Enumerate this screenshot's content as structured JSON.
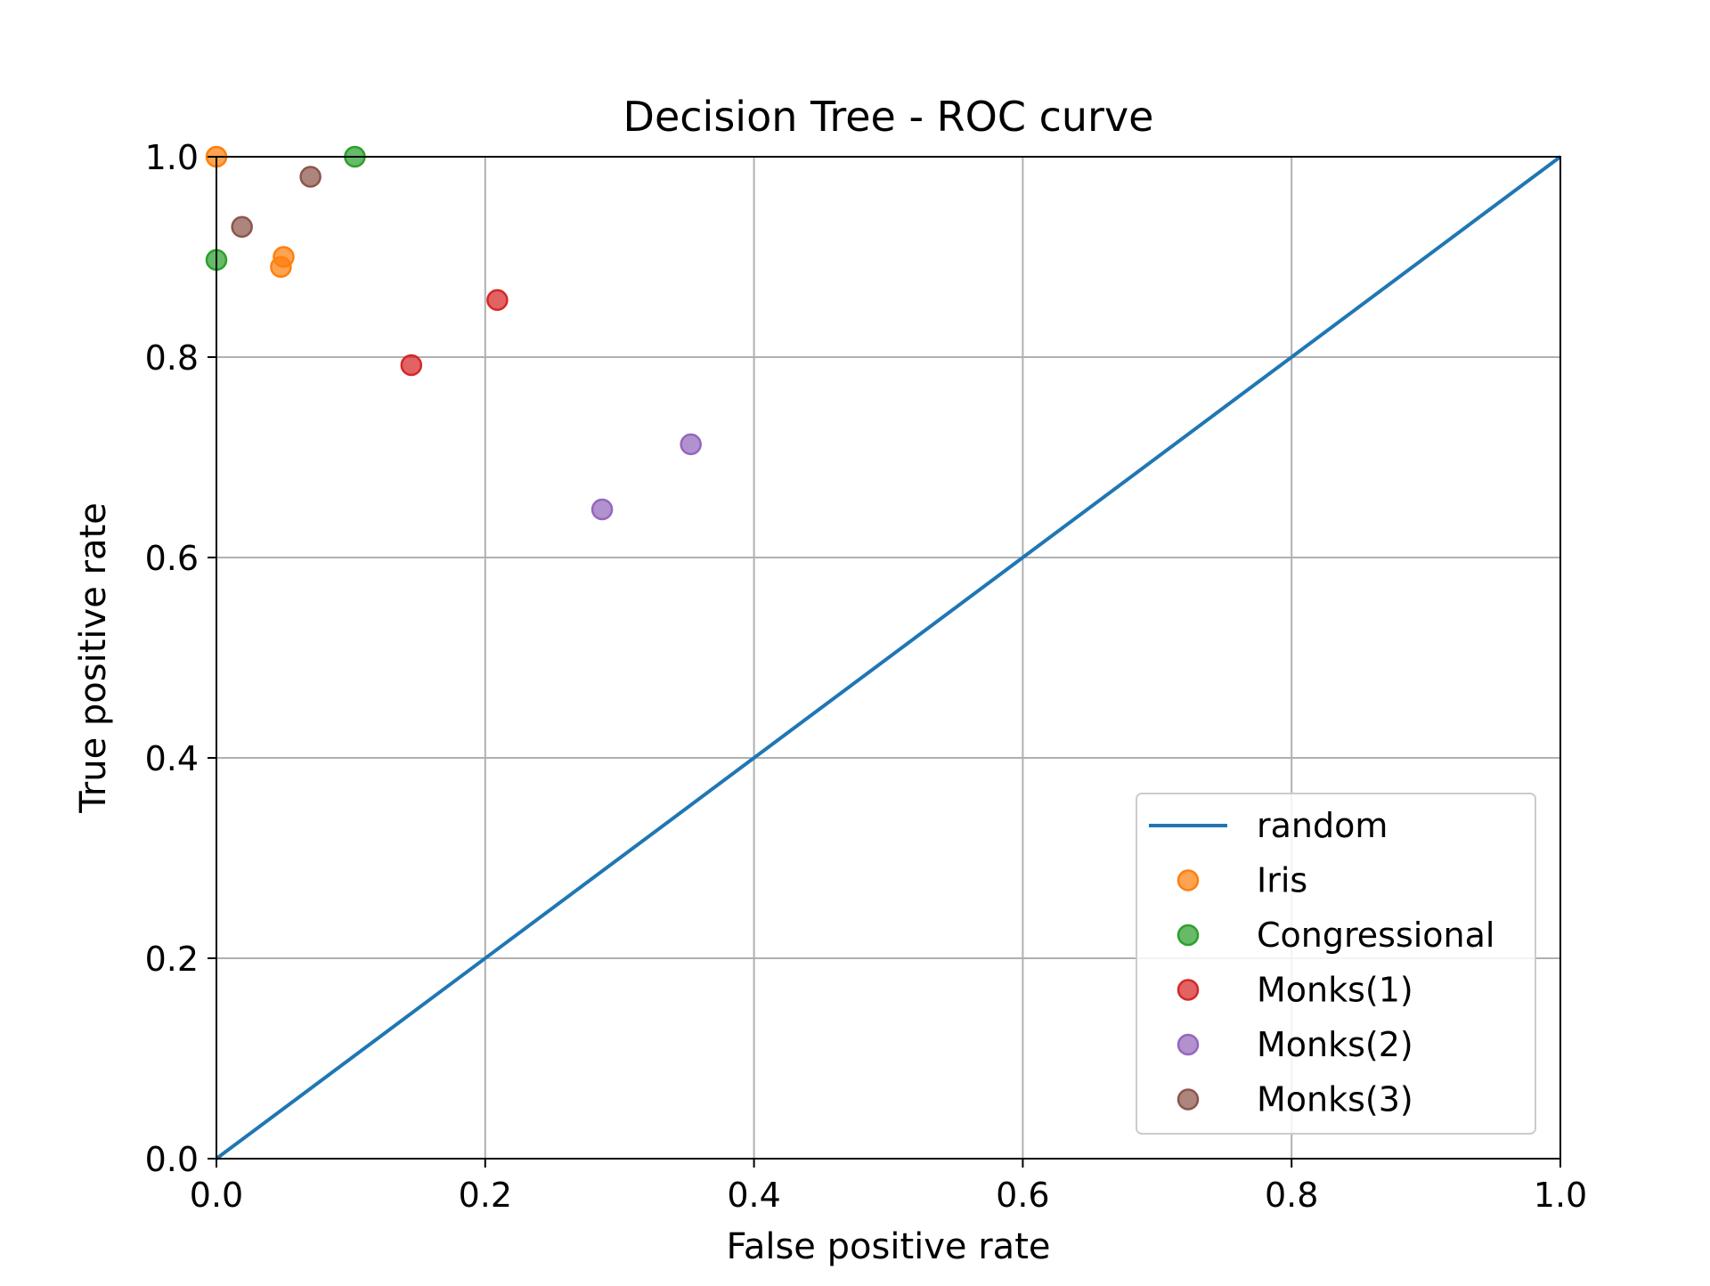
{
  "chart_data": {
    "type": "scatter",
    "title": "Decision Tree - ROC curve",
    "xlabel": "False positive rate",
    "ylabel": "True positive rate",
    "xlim": [
      0,
      1
    ],
    "ylim": [
      0,
      1
    ],
    "xticks": [
      "0.0",
      "0.2",
      "0.4",
      "0.6",
      "0.8",
      "1.0"
    ],
    "yticks": [
      "0.0",
      "0.2",
      "0.4",
      "0.6",
      "0.8",
      "1.0"
    ],
    "grid": true,
    "legend_position": "lower right",
    "series": [
      {
        "name": "random",
        "kind": "line",
        "color": "#1f77b4",
        "points": [
          [
            0,
            0
          ],
          [
            1,
            1
          ]
        ]
      },
      {
        "name": "Iris",
        "kind": "scatter",
        "color": "#ff7f0e",
        "points": [
          [
            0.0,
            1.0
          ],
          [
            0.05,
            0.9
          ],
          [
            0.048,
            0.89
          ]
        ]
      },
      {
        "name": "Congressional",
        "kind": "scatter",
        "color": "#2ca02c",
        "points": [
          [
            0.0,
            0.897
          ],
          [
            0.103,
            1.0
          ]
        ]
      },
      {
        "name": "Monks(1)",
        "kind": "scatter",
        "color": "#d62728",
        "points": [
          [
            0.145,
            0.792
          ],
          [
            0.209,
            0.857
          ]
        ]
      },
      {
        "name": "Monks(2)",
        "kind": "scatter",
        "color": "#9467bd",
        "points": [
          [
            0.287,
            0.648
          ],
          [
            0.353,
            0.713
          ]
        ]
      },
      {
        "name": "Monks(3)",
        "kind": "scatter",
        "color": "#8c564b",
        "points": [
          [
            0.019,
            0.93
          ],
          [
            0.07,
            0.98
          ]
        ]
      }
    ]
  }
}
